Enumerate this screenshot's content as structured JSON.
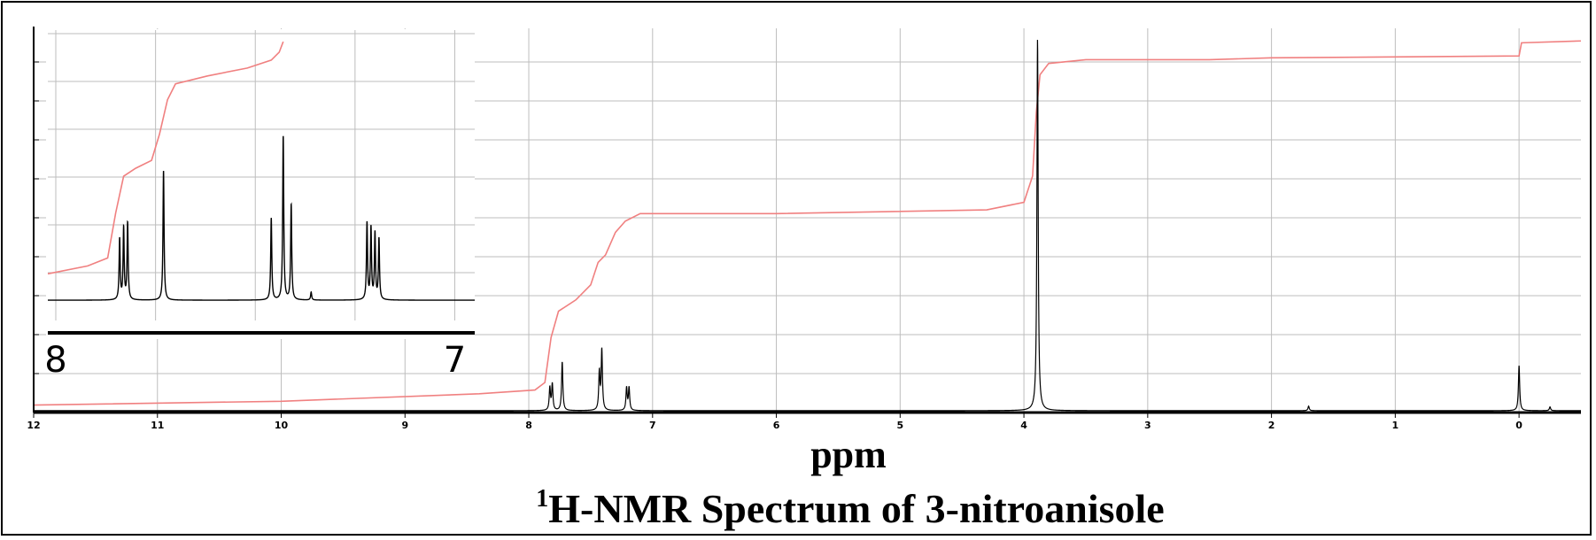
{
  "chart_data": [
    {
      "type": "line",
      "title_sup": "1",
      "title": "H-NMR Spectrum of 3-nitroanisole",
      "xlabel": "ppm",
      "ylabel": "",
      "x_axis_reversed": true,
      "xlim": [
        12,
        -0.5
      ],
      "ylim": [
        0,
        1
      ],
      "grid": true,
      "x_ticks": [
        12,
        11,
        10,
        9,
        8,
        7,
        6,
        5,
        4,
        3,
        2,
        1,
        0
      ],
      "x_tick_labels": [
        "12",
        "11",
        "10",
        "9",
        "8",
        "7",
        "6",
        "5",
        "4",
        "3",
        "2",
        "1",
        "0"
      ],
      "colors": {
        "spectrum": "#000000",
        "integral": "#f08080",
        "grid": "#bdbdbd"
      },
      "series": [
        {
          "kind": "spectrum",
          "baseline": 0.005,
          "peaks": [
            {
              "ppm": 7.83,
              "height": 0.06,
              "width": 0.006
            },
            {
              "ppm": 7.81,
              "height": 0.07,
              "width": 0.006
            },
            {
              "ppm": 7.73,
              "height": 0.13,
              "width": 0.006
            },
            {
              "ppm": 7.43,
              "height": 0.1,
              "width": 0.006
            },
            {
              "ppm": 7.41,
              "height": 0.16,
              "width": 0.006
            },
            {
              "ppm": 7.21,
              "height": 0.06,
              "width": 0.006
            },
            {
              "ppm": 7.19,
              "height": 0.06,
              "width": 0.006
            },
            {
              "ppm": 3.89,
              "height": 0.99,
              "width": 0.006
            },
            {
              "ppm": 1.7,
              "height": 0.012,
              "width": 0.006
            },
            {
              "ppm": 0.0,
              "height": 0.12,
              "width": 0.006
            },
            {
              "ppm": -0.25,
              "height": 0.01,
              "width": 0.006
            }
          ]
        },
        {
          "kind": "integral",
          "points": [
            [
              12.0,
              0.02
            ],
            [
              10.0,
              0.03
            ],
            [
              8.4,
              0.05
            ],
            [
              7.95,
              0.06
            ],
            [
              7.87,
              0.08
            ],
            [
              7.82,
              0.2
            ],
            [
              7.76,
              0.27
            ],
            [
              7.62,
              0.3
            ],
            [
              7.5,
              0.34
            ],
            [
              7.44,
              0.4
            ],
            [
              7.38,
              0.42
            ],
            [
              7.3,
              0.48
            ],
            [
              7.22,
              0.51
            ],
            [
              7.1,
              0.53
            ],
            [
              6.0,
              0.53
            ],
            [
              4.3,
              0.54
            ],
            [
              4.0,
              0.56
            ],
            [
              3.93,
              0.63
            ],
            [
              3.9,
              0.8
            ],
            [
              3.87,
              0.9
            ],
            [
              3.8,
              0.93
            ],
            [
              3.5,
              0.94
            ],
            [
              2.5,
              0.94
            ],
            [
              2.0,
              0.945
            ],
            [
              0.0,
              0.95
            ],
            [
              -0.02,
              0.985
            ],
            [
              -0.5,
              0.99
            ]
          ]
        }
      ]
    },
    {
      "type": "line",
      "role": "inset",
      "title": "",
      "xlabel": "",
      "ylabel": "",
      "x_axis_reversed": true,
      "xlim": [
        8.02,
        6.95
      ],
      "ylim": [
        0,
        1
      ],
      "grid": true,
      "x_ticks": [
        8,
        7
      ],
      "x_tick_labels": [
        "8",
        "7"
      ],
      "series": [
        {
          "kind": "spectrum",
          "baseline": 0.05,
          "peaks": [
            {
              "ppm": 7.84,
              "height": 0.23,
              "width": 0.0016
            },
            {
              "ppm": 7.83,
              "height": 0.27,
              "width": 0.0016
            },
            {
              "ppm": 7.82,
              "height": 0.29,
              "width": 0.0016
            },
            {
              "ppm": 7.73,
              "height": 0.49,
              "width": 0.0016
            },
            {
              "ppm": 7.46,
              "height": 0.31,
              "width": 0.0016
            },
            {
              "ppm": 7.43,
              "height": 0.62,
              "width": 0.0016
            },
            {
              "ppm": 7.41,
              "height": 0.36,
              "width": 0.0016
            },
            {
              "ppm": 7.36,
              "height": 0.03,
              "width": 0.0016
            },
            {
              "ppm": 7.22,
              "height": 0.29,
              "width": 0.0016
            },
            {
              "ppm": 7.21,
              "height": 0.27,
              "width": 0.0016
            },
            {
              "ppm": 7.2,
              "height": 0.25,
              "width": 0.0016
            },
            {
              "ppm": 7.19,
              "height": 0.23,
              "width": 0.0016
            }
          ]
        },
        {
          "kind": "integral",
          "points": [
            [
              8.02,
              0.15
            ],
            [
              7.92,
              0.18
            ],
            [
              7.87,
              0.21
            ],
            [
              7.85,
              0.38
            ],
            [
              7.83,
              0.52
            ],
            [
              7.8,
              0.55
            ],
            [
              7.76,
              0.58
            ],
            [
              7.74,
              0.68
            ],
            [
              7.72,
              0.81
            ],
            [
              7.7,
              0.87
            ],
            [
              7.62,
              0.9
            ],
            [
              7.52,
              0.93
            ],
            [
              7.46,
              0.96
            ],
            [
              7.44,
              0.99
            ],
            [
              7.43,
              1.03
            ]
          ]
        }
      ]
    }
  ]
}
